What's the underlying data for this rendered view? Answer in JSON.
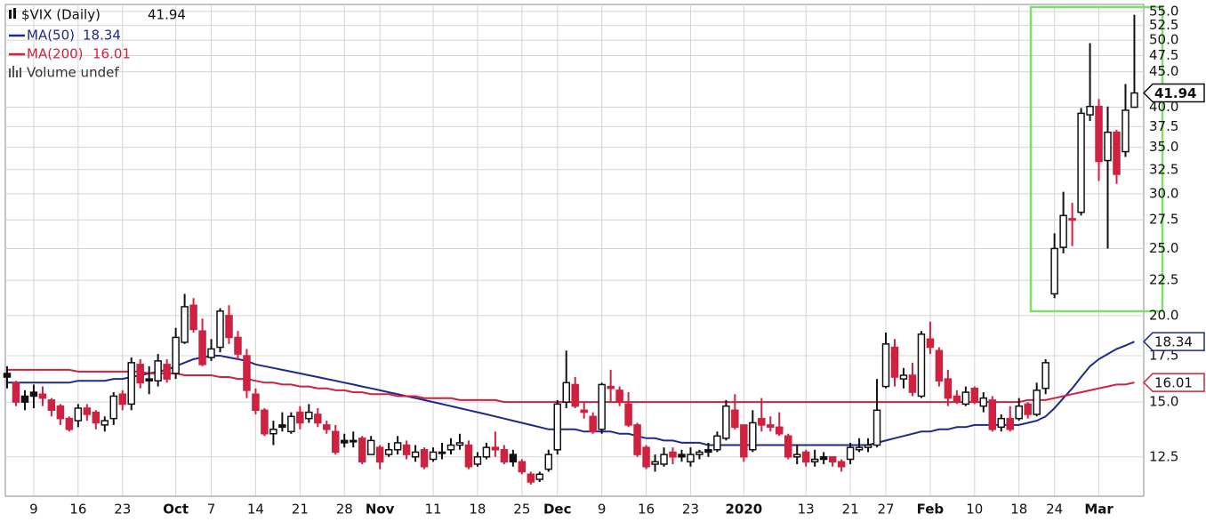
{
  "chart_data": {
    "type": "candlestick",
    "candles": {
      "name": "$VIX (Daily)",
      "open": [
        16.5,
        16.0,
        15.3,
        15.5,
        15.4,
        15.1,
        14.8,
        14.2,
        14.1,
        14.7,
        14.5,
        13.9,
        14.2,
        15.4,
        14.9,
        17.0,
        16.2,
        16.1,
        17.0,
        16.5,
        18.3,
        20.7,
        19.0,
        17.4,
        18.0,
        20.0,
        18.6,
        17.5,
        15.4,
        14.6,
        13.5,
        13.9,
        13.6,
        14.5,
        14.2,
        14.4,
        13.9,
        13.6,
        13.2,
        13.2,
        13.3,
        12.6,
        12.9,
        12.6,
        12.8,
        13.0,
        12.5,
        12.8,
        12.4,
        12.7,
        12.8,
        13.0,
        13.0,
        12.2,
        12.5,
        12.9,
        12.8,
        12.6,
        12.3,
        11.8,
        11.6,
        12.0,
        12.8,
        15.0,
        15.9,
        14.6,
        14.3,
        13.7,
        15.8,
        15.6,
        14.9,
        13.9,
        12.9,
        12.2,
        12.2,
        12.7,
        12.6,
        12.3,
        12.6,
        12.8,
        12.8,
        13.3,
        14.6,
        13.9,
        12.8,
        14.2,
        13.9,
        13.8,
        13.4,
        12.5,
        12.7,
        12.3,
        12.5,
        12.5,
        12.3,
        12.4,
        12.8,
        12.9,
        13.0,
        15.8,
        18.0,
        16.2,
        16.4,
        15.3,
        18.5,
        17.8,
        16.2,
        15.3,
        14.9,
        15.7,
        14.8,
        15.1,
        13.8,
        14.2,
        14.2,
        14.9,
        14.4,
        15.7,
        21.5,
        25.1,
        27.5,
        28.2,
        39.0,
        40.1,
        33.5,
        36.8,
        34.5,
        40.0
      ],
      "high": [
        16.9,
        16.1,
        15.6,
        15.9,
        15.8,
        15.2,
        14.9,
        14.3,
        14.9,
        14.9,
        14.6,
        14.3,
        15.5,
        15.6,
        17.4,
        17.3,
        16.9,
        17.6,
        17.3,
        19.2,
        21.5,
        21.2,
        19.8,
        18.5,
        20.5,
        20.7,
        19.0,
        17.9,
        15.7,
        14.7,
        14.1,
        14.5,
        14.5,
        14.8,
        14.9,
        14.7,
        14.1,
        13.9,
        13.5,
        13.6,
        13.4,
        13.4,
        13.0,
        13.1,
        13.4,
        13.2,
        13.0,
        12.9,
        12.9,
        13.1,
        13.3,
        13.5,
        13.2,
        12.7,
        13.1,
        13.6,
        13.0,
        12.8,
        12.4,
        11.9,
        11.9,
        12.8,
        15.1,
        17.8,
        16.3,
        15.0,
        14.5,
        16.0,
        16.7,
        15.8,
        15.5,
        14.0,
        13.0,
        12.6,
        12.9,
        12.9,
        12.8,
        12.9,
        12.8,
        13.1,
        13.6,
        15.1,
        15.4,
        13.9,
        14.6,
        15.2,
        14.3,
        14.5,
        13.5,
        13.0,
        12.8,
        12.8,
        12.7,
        12.5,
        12.4,
        13.1,
        13.3,
        13.3,
        16.2,
        18.9,
        18.5,
        16.8,
        17.1,
        19.0,
        19.6,
        18.0,
        16.7,
        15.6,
        15.8,
        15.8,
        15.5,
        15.3,
        14.4,
        14.8,
        15.2,
        15.0,
        16.0,
        17.3,
        26.3,
        30.2,
        29.1,
        39.9,
        49.5,
        41.1,
        40.1,
        37.1,
        43.2,
        54.4
      ],
      "low": [
        15.7,
        14.8,
        14.6,
        14.7,
        14.8,
        14.3,
        13.9,
        13.6,
        13.8,
        14.1,
        13.7,
        13.6,
        13.9,
        14.6,
        14.6,
        15.7,
        15.4,
        15.8,
        16.0,
        16.2,
        18.2,
        18.9,
        16.9,
        17.2,
        17.7,
        18.2,
        17.3,
        15.2,
        14.4,
        13.4,
        13.0,
        13.6,
        13.5,
        13.7,
        14.0,
        13.8,
        13.5,
        12.6,
        12.9,
        12.9,
        12.2,
        12.6,
        12.0,
        12.5,
        12.6,
        12.4,
        12.3,
        12.0,
        12.3,
        12.4,
        12.6,
        12.8,
        12.0,
        12.1,
        12.4,
        12.5,
        12.2,
        12.1,
        11.8,
        11.4,
        11.5,
        11.9,
        12.6,
        14.7,
        14.7,
        14.2,
        13.5,
        13.5,
        15.0,
        14.8,
        13.8,
        12.5,
        12.0,
        11.9,
        12.1,
        12.2,
        12.3,
        12.1,
        12.4,
        12.5,
        12.7,
        13.2,
        13.7,
        12.3,
        12.7,
        13.6,
        13.6,
        13.4,
        12.4,
        12.2,
        12.1,
        12.1,
        12.2,
        12.1,
        11.9,
        12.2,
        12.7,
        12.7,
        12.9,
        15.7,
        15.8,
        15.7,
        15.3,
        15.2,
        17.6,
        15.8,
        14.8,
        14.9,
        14.8,
        14.9,
        14.5,
        13.6,
        13.6,
        13.6,
        14.1,
        14.2,
        14.3,
        15.4,
        21.2,
        24.6,
        25.2,
        27.9,
        38.2,
        31.3,
        25.0,
        31.0,
        33.9,
        39.9
      ],
      "close": [
        16.3,
        15.0,
        15.0,
        15.3,
        15.2,
        14.6,
        14.2,
        13.7,
        14.7,
        14.4,
        14.0,
        14.1,
        15.3,
        14.9,
        17.1,
        16.0,
        16.1,
        17.2,
        16.2,
        18.6,
        20.6,
        19.1,
        17.0,
        17.9,
        20.3,
        18.6,
        17.6,
        15.6,
        14.6,
        13.5,
        13.7,
        13.8,
        14.3,
        14.0,
        14.5,
        14.0,
        13.7,
        12.7,
        13.1,
        13.2,
        12.3,
        13.2,
        12.3,
        12.8,
        13.1,
        12.6,
        12.7,
        12.1,
        12.7,
        12.7,
        13.0,
        13.1,
        12.1,
        12.5,
        12.9,
        12.8,
        12.3,
        12.3,
        11.9,
        11.5,
        11.8,
        12.6,
        14.9,
        16.0,
        14.8,
        14.5,
        13.6,
        15.9,
        15.7,
        15.0,
        13.9,
        12.6,
        12.1,
        12.3,
        12.6,
        12.5,
        12.5,
        12.6,
        12.7,
        12.7,
        13.4,
        14.8,
        13.8,
        12.5,
        14.0,
        13.9,
        13.8,
        13.5,
        12.5,
        12.6,
        12.3,
        12.4,
        12.4,
        12.3,
        12.1,
        12.9,
        12.9,
        13.0,
        14.6,
        18.2,
        16.3,
        16.4,
        15.5,
        18.8,
        18.0,
        16.1,
        15.2,
        15.0,
        15.5,
        15.0,
        15.2,
        13.7,
        14.2,
        13.7,
        14.8,
        14.4,
        15.6,
        17.1,
        25.0,
        27.9,
        27.6,
        39.2,
        40.1,
        33.4,
        36.8,
        32.0,
        39.6,
        41.94
      ]
    },
    "series": [
      {
        "name": "MA(50)",
        "color": "#1c2a8c",
        "values": [
          16.0,
          16.0,
          16.0,
          16.0,
          16.0,
          16.0,
          16.0,
          16.0,
          16.1,
          16.1,
          16.1,
          16.1,
          16.2,
          16.2,
          16.3,
          16.4,
          16.5,
          16.6,
          16.7,
          16.9,
          17.1,
          17.3,
          17.4,
          17.5,
          17.5,
          17.4,
          17.3,
          17.2,
          17.0,
          16.9,
          16.8,
          16.7,
          16.6,
          16.5,
          16.4,
          16.3,
          16.2,
          16.1,
          16.0,
          15.9,
          15.8,
          15.7,
          15.6,
          15.5,
          15.4,
          15.3,
          15.2,
          15.1,
          15.0,
          14.9,
          14.8,
          14.7,
          14.6,
          14.5,
          14.4,
          14.3,
          14.2,
          14.1,
          14.0,
          13.9,
          13.8,
          13.7,
          13.7,
          13.7,
          13.7,
          13.6,
          13.6,
          13.6,
          13.6,
          13.5,
          13.5,
          13.4,
          13.3,
          13.3,
          13.2,
          13.2,
          13.1,
          13.1,
          13.1,
          13.0,
          13.0,
          13.0,
          13.0,
          13.0,
          13.0,
          13.0,
          13.0,
          13.0,
          13.0,
          13.0,
          13.0,
          13.0,
          13.0,
          13.0,
          13.0,
          13.0,
          13.0,
          13.0,
          13.1,
          13.2,
          13.3,
          13.4,
          13.5,
          13.6,
          13.6,
          13.7,
          13.7,
          13.8,
          13.8,
          13.9,
          13.9,
          13.9,
          13.9,
          13.9,
          13.9,
          14.0,
          14.1,
          14.3,
          14.7,
          15.2,
          15.7,
          16.3,
          16.9,
          17.3,
          17.6,
          17.9,
          18.1,
          18.34
        ]
      },
      {
        "name": "MA(200)",
        "color": "#cf2140",
        "values": [
          16.7,
          16.7,
          16.7,
          16.7,
          16.7,
          16.7,
          16.7,
          16.7,
          16.6,
          16.6,
          16.6,
          16.6,
          16.6,
          16.6,
          16.6,
          16.6,
          16.5,
          16.5,
          16.5,
          16.5,
          16.4,
          16.4,
          16.4,
          16.4,
          16.3,
          16.3,
          16.2,
          16.2,
          16.1,
          16.0,
          16.0,
          15.9,
          15.9,
          15.8,
          15.8,
          15.7,
          15.7,
          15.6,
          15.6,
          15.5,
          15.5,
          15.4,
          15.4,
          15.4,
          15.3,
          15.3,
          15.3,
          15.2,
          15.2,
          15.2,
          15.2,
          15.1,
          15.1,
          15.1,
          15.1,
          15.1,
          15.0,
          15.0,
          15.0,
          15.0,
          15.0,
          15.0,
          15.0,
          15.0,
          15.0,
          15.0,
          15.0,
          15.0,
          15.0,
          15.0,
          15.0,
          15.0,
          15.0,
          15.0,
          15.0,
          15.0,
          15.0,
          15.0,
          15.0,
          15.0,
          15.0,
          15.0,
          15.0,
          15.0,
          15.0,
          15.0,
          15.0,
          15.0,
          15.0,
          15.0,
          15.0,
          15.0,
          15.0,
          15.0,
          15.0,
          15.0,
          15.0,
          15.0,
          15.0,
          15.0,
          15.0,
          15.0,
          15.0,
          15.0,
          15.0,
          15.0,
          15.0,
          15.0,
          15.0,
          15.0,
          15.0,
          15.0,
          15.0,
          15.0,
          15.0,
          15.1,
          15.1,
          15.1,
          15.2,
          15.3,
          15.4,
          15.5,
          15.6,
          15.7,
          15.8,
          15.9,
          15.9,
          16.01
        ]
      }
    ],
    "categories": [
      null,
      null,
      null,
      "9",
      null,
      null,
      null,
      null,
      "16",
      null,
      null,
      null,
      null,
      "23",
      null,
      null,
      null,
      null,
      null,
      "Oct",
      null,
      null,
      null,
      "7",
      null,
      null,
      null,
      null,
      "14",
      null,
      null,
      null,
      null,
      "21",
      null,
      null,
      null,
      null,
      "28",
      null,
      null,
      null,
      "Nov",
      null,
      null,
      null,
      null,
      null,
      "11",
      null,
      null,
      null,
      null,
      "18",
      null,
      null,
      null,
      null,
      "25",
      null,
      null,
      null,
      "Dec",
      null,
      null,
      null,
      null,
      "9",
      null,
      null,
      null,
      null,
      "16",
      null,
      null,
      null,
      null,
      "23",
      null,
      null,
      null,
      null,
      null,
      "2020",
      null,
      null,
      null,
      null,
      null,
      null,
      "13",
      null,
      null,
      null,
      null,
      "21",
      null,
      null,
      null,
      "27",
      null,
      null,
      null,
      null,
      "Feb",
      null,
      null,
      null,
      null,
      "10",
      null,
      null,
      null,
      null,
      "18",
      null,
      null,
      null,
      "24",
      null,
      null,
      null,
      null,
      "Mar",
      null,
      null,
      null,
      null
    ],
    "up_color": "#ffffff",
    "down_color": "#cf2140",
    "volume_label": "Volume undef",
    "log_scale": true,
    "grid": true,
    "ylim": [
      11,
      56.3
    ],
    "yticks": [
      12.5,
      {
        "value": 15,
        "label": "15.0"
      },
      17.5,
      {
        "value": 20,
        "label": "20.0"
      },
      22.5,
      {
        "value": 25,
        "label": "25.0"
      },
      27.5,
      {
        "value": 30,
        "label": "30.0"
      },
      32.5,
      {
        "value": 35,
        "label": "35.0"
      },
      37.5,
      {
        "value": 40,
        "label": "40.0"
      },
      {
        "value": 45,
        "label": "45.0"
      },
      47.5,
      {
        "value": 50,
        "label": "50.0"
      },
      52.5,
      {
        "value": 55,
        "label": "55.0"
      }
    ]
  }
}
